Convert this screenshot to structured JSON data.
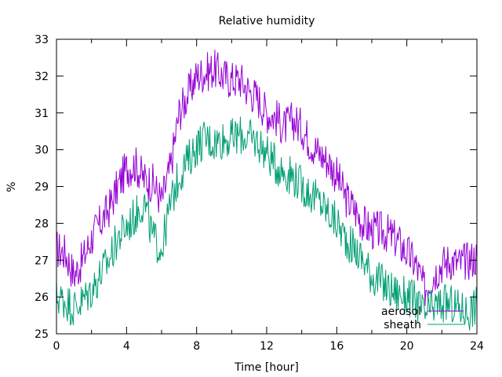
{
  "chart_data": {
    "type": "line",
    "title": "Relative humidity",
    "xlabel": "Time [hour]",
    "ylabel": "%",
    "xlim": [
      0,
      24
    ],
    "ylim": [
      25,
      33
    ],
    "xticks": [
      0,
      4,
      8,
      12,
      16,
      20,
      24
    ],
    "yticks": [
      25,
      26,
      27,
      28,
      29,
      30,
      31,
      32,
      33
    ],
    "grid": false,
    "legend_position": "bottom-right",
    "series": [
      {
        "name": "aerosol",
        "color": "#9400d3",
        "x": [
          0,
          0.5,
          1,
          1.5,
          2,
          2.5,
          3,
          3.5,
          4,
          4.5,
          5,
          5.5,
          6,
          6.5,
          7,
          7.5,
          8,
          8.5,
          9,
          9.5,
          10,
          10.5,
          11,
          11.5,
          12,
          12.5,
          13,
          13.5,
          14,
          14.5,
          15,
          15.5,
          16,
          16.5,
          17,
          17.5,
          18,
          18.5,
          19,
          19.5,
          20,
          20.5,
          21,
          21.5,
          22,
          22.5,
          23,
          23.5,
          24
        ],
        "values": [
          27.3,
          27.2,
          26.6,
          27.0,
          27.6,
          28.0,
          28.4,
          29.0,
          29.5,
          29.6,
          29.2,
          29.1,
          28.6,
          29.5,
          31.0,
          31.5,
          32.0,
          32.1,
          32.2,
          32.0,
          31.9,
          31.9,
          31.6,
          31.4,
          31.0,
          30.9,
          30.6,
          30.8,
          30.6,
          30.2,
          29.9,
          29.7,
          29.3,
          28.7,
          28.4,
          28.0,
          27.8,
          27.8,
          27.7,
          27.5,
          27.2,
          26.9,
          26.2,
          26.6,
          26.9,
          27.0,
          26.9,
          27.0,
          27.1
        ]
      },
      {
        "name": "sheath",
        "color": "#009e73",
        "x": [
          0,
          0.5,
          1,
          1.5,
          2,
          2.5,
          3,
          3.5,
          4,
          4.5,
          5,
          5.5,
          6,
          6.5,
          7,
          7.5,
          8,
          8.5,
          9,
          9.5,
          10,
          10.5,
          11,
          11.5,
          12,
          12.5,
          13,
          13.5,
          14,
          14.5,
          15,
          15.5,
          16,
          16.5,
          17,
          17.5,
          18,
          18.5,
          19,
          19.5,
          20,
          20.5,
          21,
          21.5,
          22,
          22.5,
          23,
          23.5,
          24
        ],
        "values": [
          26.0,
          25.9,
          25.7,
          25.9,
          26.2,
          26.6,
          27.0,
          27.6,
          27.9,
          28.2,
          28.6,
          27.6,
          27.3,
          28.5,
          29.3,
          29.7,
          30.1,
          30.3,
          30.2,
          30.3,
          30.3,
          30.4,
          30.3,
          30.2,
          29.9,
          29.6,
          29.4,
          29.3,
          29.0,
          28.8,
          28.6,
          28.3,
          28.0,
          27.6,
          27.3,
          27.0,
          26.6,
          26.4,
          26.2,
          26.1,
          26.0,
          25.9,
          25.5,
          25.7,
          25.8,
          25.8,
          25.7,
          25.6,
          25.8
        ]
      }
    ]
  }
}
